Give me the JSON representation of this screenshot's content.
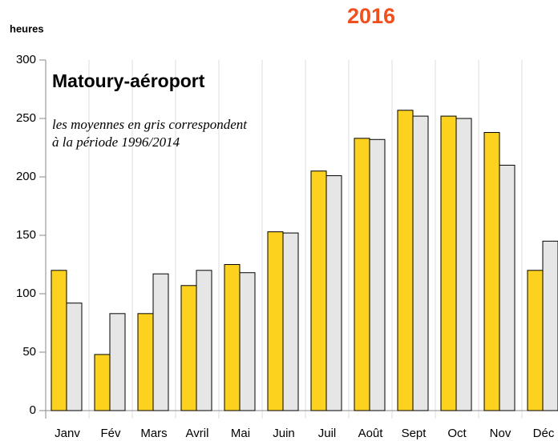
{
  "chart_data": {
    "type": "bar",
    "title": "Matoury-aéroport",
    "y_label": "heures",
    "annotation": [
      "les moyennes en gris correspondent",
      "à la période 1996/2014"
    ],
    "categories": [
      "Janv",
      "Fév",
      "Mars",
      "Avril",
      "Mai",
      "Juin",
      "Juil",
      "Août",
      "Sept",
      "Oct",
      "Nov",
      "Déc"
    ],
    "series": [
      {
        "name": "2016",
        "color": "#fdd21e",
        "values": [
          120,
          48,
          83,
          107,
          125,
          153,
          205,
          233,
          257,
          252,
          238,
          120
        ]
      },
      {
        "color": "#e6e6e6",
        "values": [
          92,
          83,
          117,
          120,
          118,
          152,
          201,
          232,
          252,
          250,
          210,
          145
        ]
      }
    ],
    "ylim": [
      0,
      300
    ],
    "yticks": [
      0,
      50,
      100,
      150,
      200,
      250,
      300
    ],
    "grid": false
  }
}
